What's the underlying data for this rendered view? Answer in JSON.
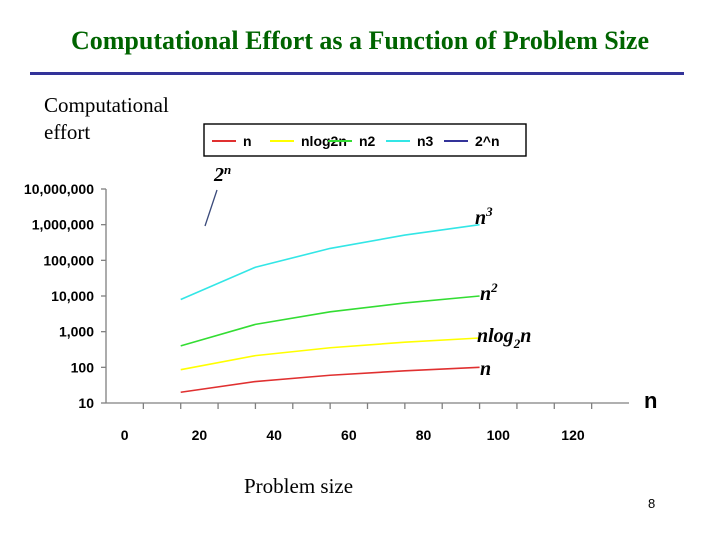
{
  "slide": {
    "title": "Computational Effort as a Function of Problem Size",
    "y_caption": "Computational effort",
    "x_caption": "Problem size",
    "page_number": "8"
  },
  "colors": {
    "title": "#006400",
    "rule": "#333399"
  },
  "chart_data": {
    "type": "line",
    "yscale": "log",
    "grid": false,
    "legend_position": "top",
    "x": [
      20,
      40,
      60,
      80,
      100
    ],
    "xlim": [
      0,
      140
    ],
    "ylim": [
      10,
      10000000
    ],
    "x_ticks": [
      0,
      20,
      40,
      60,
      80,
      100,
      120
    ],
    "x_tick_labels": [
      "0",
      "20",
      "40",
      "60",
      "80",
      "100",
      "120"
    ],
    "y_ticks": [
      10,
      100,
      1000,
      10000,
      100000,
      1000000,
      10000000
    ],
    "y_tick_labels": [
      "10",
      "100",
      "1,000",
      "10,000",
      "100,000",
      "1,000,000",
      "10,000,000"
    ],
    "xlabel": "n",
    "series": [
      {
        "name": "n",
        "color": "#e03030",
        "values": [
          20,
          40,
          60,
          80,
          100
        ]
      },
      {
        "name": "nlog2n",
        "color": "#ffff00",
        "values": [
          86,
          213,
          354,
          506,
          664
        ]
      },
      {
        "name": "n2",
        "color": "#33dd33",
        "values": [
          400,
          1600,
          3600,
          6400,
          10000
        ]
      },
      {
        "name": "n3",
        "color": "#33e6e6",
        "values": [
          8000,
          64000,
          216000,
          512000,
          1000000
        ]
      },
      {
        "name": "2^n",
        "color": "#333399",
        "values": [
          1048576,
          null,
          null,
          null,
          null
        ]
      }
    ],
    "annotations": [
      {
        "text": "2",
        "sup": "n"
      },
      {
        "text": "n",
        "sup": "3"
      },
      {
        "text": "n",
        "sup": "2"
      },
      {
        "text": "nlog",
        "sub": "2",
        "tail": "n"
      },
      {
        "text": "n"
      }
    ],
    "pointer_color": "#3a4a7a"
  }
}
